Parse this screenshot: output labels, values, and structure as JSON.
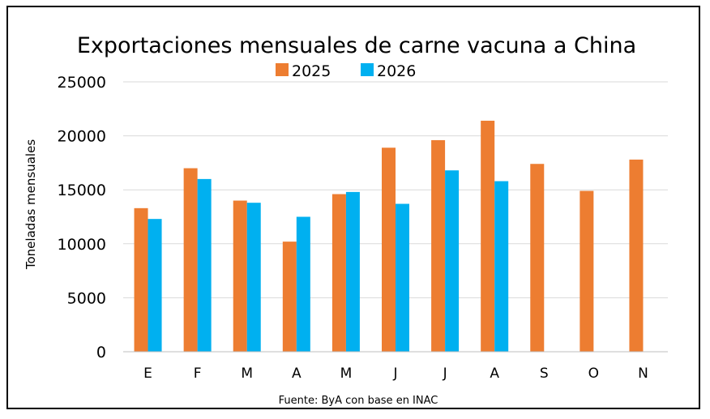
{
  "chart_data": {
    "type": "bar",
    "title": "Exportaciones mensuales de carne vacuna a China",
    "ylabel": "Toneladas mensuales",
    "xlabel": "",
    "source": "Fuente: ByA con base en INAC",
    "categories": [
      "E",
      "F",
      "M",
      "A",
      "M",
      "J",
      "J",
      "A",
      "S",
      "O",
      "N"
    ],
    "ylim": [
      0,
      25000
    ],
    "yticks": [
      0,
      5000,
      10000,
      15000,
      20000,
      25000
    ],
    "grid": true,
    "legend": "top",
    "series": [
      {
        "name": "2025",
        "color": "#ed7d31",
        "values": [
          13300,
          17000,
          14000,
          10200,
          14600,
          18900,
          19600,
          21400,
          17400,
          14900,
          17800
        ]
      },
      {
        "name": "2026",
        "color": "#00b0f0",
        "values": [
          12300,
          16000,
          13800,
          12500,
          14800,
          13700,
          16800,
          15800,
          null,
          null,
          null
        ]
      }
    ]
  }
}
